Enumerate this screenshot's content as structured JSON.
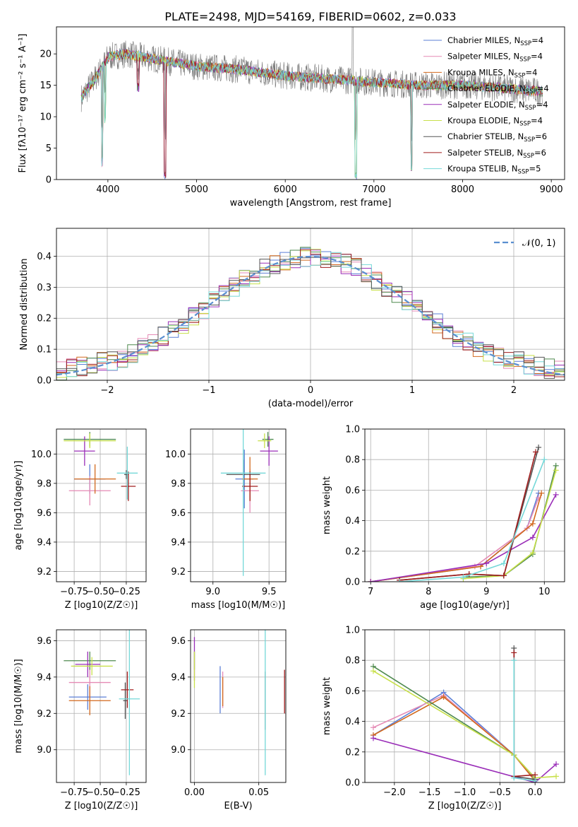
{
  "title": "PLATE=2498, MJD=54169, FIBERID=0602, z=0.033",
  "series": [
    {
      "name": "Chabrier MILES, N_SSP=4",
      "legend_main": "Chabrier MILES, N",
      "legend_sub": "SSP",
      "legend_tail": "=4",
      "color": "#5b7fd6"
    },
    {
      "name": "Salpeter MILES, N_SSP=4",
      "legend_main": "Salpeter MILES, N",
      "legend_sub": "SSP",
      "legend_tail": "=4",
      "color": "#e58ab5"
    },
    {
      "name": "Kroupa MILES, N_SSP=4",
      "legend_main": "Kroupa MILES, N",
      "legend_sub": "SSP",
      "legend_tail": "=4",
      "color": "#d2691e"
    },
    {
      "name": "Chabrier ELODIE, N_SSP=4",
      "legend_main": "Chabrier ELODIE, N",
      "legend_sub": "SSP",
      "legend_tail": "=4",
      "color": "#4f8a4f"
    },
    {
      "name": "Salpeter ELODIE, N_SSP=4",
      "legend_main": "Salpeter ELODIE, N",
      "legend_sub": "SSP",
      "legend_tail": "=4",
      "color": "#9a2eb8"
    },
    {
      "name": "Kroupa ELODIE, N_SSP=4",
      "legend_main": "Kroupa ELODIE, N",
      "legend_sub": "SSP",
      "legend_tail": "=4",
      "color": "#c8e04a"
    },
    {
      "name": "Chabrier STELIB, N_SSP=6",
      "legend_main": "Chabrier STELIB, N",
      "legend_sub": "SSP",
      "legend_tail": "=6",
      "color": "#555555"
    },
    {
      "name": "Salpeter STELIB, N_SSP=6",
      "legend_main": "Salpeter STELIB, N",
      "legend_sub": "SSP",
      "legend_tail": "=6",
      "color": "#a01c1c"
    },
    {
      "name": "Kroupa STELIB, N_SSP=5",
      "legend_main": "Kroupa STELIB, N",
      "legend_sub": "SSP",
      "legend_tail": "=5",
      "color": "#74d8d8"
    }
  ],
  "chart_data": [
    {
      "id": "spectrum",
      "type": "line",
      "xlabel": "wavelength [Angstrom, rest frame]",
      "ylabel": "Flux [fλ10⁻¹⁷ erg cm⁻² s⁻¹ A⁻¹]",
      "xlim": [
        3420,
        9150
      ],
      "ylim": [
        0,
        24.3
      ],
      "xticks": [
        4000,
        5000,
        6000,
        7000,
        8000,
        9000
      ],
      "yticks": [
        0,
        5,
        10,
        15,
        20
      ],
      "wavelength_range": [
        3700,
        8900
      ],
      "continuum_anchors": {
        "x": [
          3700,
          3800,
          3900,
          4000,
          4200,
          4400,
          4600,
          5000,
          5500,
          6000,
          6500,
          7000,
          7500,
          8000,
          8500,
          8900
        ],
        "y": [
          13,
          15,
          17,
          19.5,
          20,
          19.5,
          19,
          18,
          17.5,
          16.5,
          16,
          15.5,
          15,
          15,
          14.5,
          14
        ]
      },
      "absorption_lines": [
        {
          "x": 3935,
          "depth": 15
        },
        {
          "x": 4645,
          "depth": 18
        },
        {
          "x": 6795,
          "depth": 15
        },
        {
          "x": 7425,
          "depth": 13
        },
        {
          "x": 4340,
          "depth": 5
        },
        {
          "x": 3970,
          "depth": 9
        }
      ],
      "grid": false,
      "legend": "top-right"
    },
    {
      "id": "residuals",
      "type": "step",
      "xlabel": "(data-model)/error",
      "ylabel": "Normed distribution",
      "xlim": [
        -2.5,
        2.5
      ],
      "ylim": [
        0,
        0.49
      ],
      "xticks": [
        -2,
        -1,
        0,
        1,
        2
      ],
      "yticks": [
        0.0,
        0.1,
        0.2,
        0.3,
        0.4
      ],
      "bin_width": 0.1,
      "reference_curve": {
        "label": "N(0,1)",
        "mu": 0,
        "sigma": 1
      },
      "grid": true,
      "legend": "top-right"
    },
    {
      "id": "age-vs-Z",
      "type": "errorbar",
      "xlabel": "Z [log10(Z/Z☉)]",
      "ylabel": "age  [log10(age/yr)]",
      "xlim": [
        -0.92,
        -0.06
      ],
      "ylim": [
        9.13,
        10.17
      ],
      "xticks": [
        -0.75,
        -0.5,
        -0.25
      ],
      "yticks": [
        9.2,
        9.4,
        9.6,
        9.8,
        10.0
      ],
      "points": [
        {
          "series": 0,
          "x": -0.6,
          "xerr": 0.15,
          "y": 9.83,
          "yerr": 0.1
        },
        {
          "series": 1,
          "x": -0.6,
          "xerr": 0.2,
          "y": 9.75,
          "yerr": 0.1
        },
        {
          "series": 2,
          "x": -0.55,
          "xerr": 0.2,
          "y": 9.83,
          "yerr": 0.1
        },
        {
          "series": 3,
          "x": -0.6,
          "xerr": 0.25,
          "y": 10.1,
          "yerr": 0.05
        },
        {
          "series": 4,
          "x": -0.65,
          "xerr": 0.1,
          "y": 10.02,
          "yerr": 0.1
        },
        {
          "series": 5,
          "x": -0.6,
          "xerr": 0.25,
          "y": 10.09,
          "yerr": 0.05
        },
        {
          "series": 6,
          "x": -0.25,
          "xerr": 0.02,
          "y": 9.86,
          "yerr": 0.03
        },
        {
          "series": 7,
          "x": -0.23,
          "xerr": 0.07,
          "y": 9.78,
          "yerr": 0.1
        },
        {
          "series": 8,
          "x": -0.24,
          "xerr": 0.1,
          "y": 9.87,
          "yerr": 0.18
        }
      ],
      "grid": true
    },
    {
      "id": "age-vs-mass",
      "type": "errorbar",
      "xlabel": "mass [log10(M/M☉)]",
      "ylabel": "",
      "xlim": [
        8.8,
        9.65
      ],
      "ylim": [
        9.13,
        10.17
      ],
      "xticks": [
        9.0,
        9.5
      ],
      "yticks": [
        9.2,
        9.4,
        9.6,
        9.8,
        10.0
      ],
      "points": [
        {
          "series": 0,
          "x": 9.28,
          "xerr": 0.08,
          "y": 9.83,
          "yerr": 0.2
        },
        {
          "series": 1,
          "x": 9.33,
          "xerr": 0.08,
          "y": 9.75,
          "yerr": 0.15
        },
        {
          "series": 2,
          "x": 9.33,
          "xerr": 0.07,
          "y": 9.83,
          "yerr": 0.15
        },
        {
          "series": 3,
          "x": 9.49,
          "xerr": 0.05,
          "y": 10.1,
          "yerr": 0.05
        },
        {
          "series": 4,
          "x": 9.5,
          "xerr": 0.08,
          "y": 10.02,
          "yerr": 0.1
        },
        {
          "series": 5,
          "x": 9.46,
          "xerr": 0.06,
          "y": 10.09,
          "yerr": 0.05
        },
        {
          "series": 6,
          "x": 9.27,
          "xerr": 0.15,
          "y": 9.86,
          "yerr": 0.1
        },
        {
          "series": 7,
          "x": 9.33,
          "xerr": 0.07,
          "y": 9.78,
          "yerr": 0.1
        },
        {
          "series": 8,
          "x": 9.27,
          "xerr": 0.2,
          "y": 9.87,
          "yerr": 0.7
        }
      ],
      "grid": true
    },
    {
      "id": "massweight-vs-age",
      "type": "line",
      "xlabel": "age  [log10(age/yr)]",
      "ylabel": "mass weight",
      "xlim": [
        6.9,
        10.35
      ],
      "ylim": [
        0,
        1.0
      ],
      "xticks": [
        7,
        8,
        9,
        10
      ],
      "yticks": [
        0.0,
        0.2,
        0.4,
        0.6,
        0.8,
        1.0
      ],
      "lines": [
        {
          "series": 0,
          "x": [
            7.0,
            8.9,
            9.7,
            9.9
          ],
          "y": [
            0.0,
            0.1,
            0.35,
            0.58
          ]
        },
        {
          "series": 1,
          "x": [
            7.0,
            8.8,
            9.7,
            9.9
          ],
          "y": [
            0.0,
            0.1,
            0.35,
            0.55
          ]
        },
        {
          "series": 2,
          "x": [
            7.0,
            8.9,
            9.8,
            9.95
          ],
          "y": [
            0.0,
            0.1,
            0.38,
            0.58
          ]
        },
        {
          "series": 3,
          "x": [
            8.6,
            9.3,
            9.8,
            10.2
          ],
          "y": [
            0.03,
            0.04,
            0.18,
            0.76
          ]
        },
        {
          "series": 4,
          "x": [
            7.0,
            9.0,
            9.8,
            10.2
          ],
          "y": [
            0.0,
            0.12,
            0.29,
            0.57
          ]
        },
        {
          "series": 5,
          "x": [
            8.6,
            9.3,
            9.8,
            10.2
          ],
          "y": [
            0.02,
            0.04,
            0.19,
            0.73
          ]
        },
        {
          "series": 6,
          "x": [
            7.5,
            8.7,
            9.3,
            9.9
          ],
          "y": [
            0.01,
            0.05,
            0.04,
            0.88
          ]
        },
        {
          "series": 7,
          "x": [
            7.5,
            8.7,
            9.3,
            9.85
          ],
          "y": [
            0.01,
            0.05,
            0.04,
            0.85
          ]
        },
        {
          "series": 8,
          "x": [
            7.5,
            8.6,
            9.3,
            10.0
          ],
          "y": [
            0.0,
            0.03,
            0.12,
            0.8
          ]
        }
      ],
      "grid": true
    },
    {
      "id": "mass-vs-Z",
      "type": "errorbar",
      "xlabel": "Z [log10(Z/Z☉)]",
      "ylabel": "mass [log10(M/M☉)]",
      "xlim": [
        -0.92,
        -0.06
      ],
      "ylim": [
        8.82,
        9.66
      ],
      "xticks": [
        -0.75,
        -0.5,
        -0.25
      ],
      "yticks": [
        9.0,
        9.2,
        9.4,
        9.6
      ],
      "points": [
        {
          "series": 0,
          "x": -0.62,
          "xerr": 0.18,
          "y": 9.29,
          "yerr": 0.07
        },
        {
          "series": 1,
          "x": -0.6,
          "xerr": 0.2,
          "y": 9.37,
          "yerr": 0.08
        },
        {
          "series": 2,
          "x": -0.6,
          "xerr": 0.2,
          "y": 9.27,
          "yerr": 0.08
        },
        {
          "series": 3,
          "x": -0.6,
          "xerr": 0.25,
          "y": 9.49,
          "yerr": 0.05
        },
        {
          "series": 4,
          "x": -0.62,
          "xerr": 0.12,
          "y": 9.47,
          "yerr": 0.07
        },
        {
          "series": 5,
          "x": -0.58,
          "xerr": 0.2,
          "y": 9.46,
          "yerr": 0.05
        },
        {
          "series": 6,
          "x": -0.26,
          "xerr": 0.02,
          "y": 9.27,
          "yerr": 0.1
        },
        {
          "series": 7,
          "x": -0.24,
          "xerr": 0.06,
          "y": 9.33,
          "yerr": 0.1
        },
        {
          "series": 8,
          "x": -0.22,
          "xerr": 0.1,
          "y": 9.28,
          "yerr": 0.42
        }
      ],
      "grid": true
    },
    {
      "id": "mass-vs-EBV",
      "type": "errorbar",
      "xlabel": "E(B-V)",
      "ylabel": "",
      "xlim": [
        -0.003,
        0.071
      ],
      "ylim": [
        8.82,
        9.66
      ],
      "xticks": [
        0.0,
        0.05
      ],
      "yticks": [
        9.0,
        9.2,
        9.4,
        9.6
      ],
      "points": [
        {
          "series": 0,
          "x": 0.02,
          "xerr": 0,
          "y": 9.33,
          "yerr": 0.13
        },
        {
          "series": 1,
          "x": 0.022,
          "xerr": 0,
          "y": 9.33,
          "yerr": 0.1
        },
        {
          "series": 2,
          "x": 0.022,
          "xerr": 0,
          "y": 9.32,
          "yerr": 0.08
        },
        {
          "series": 3,
          "x": 0.0,
          "xerr": 0,
          "y": 9.49,
          "yerr": 0.05
        },
        {
          "series": 4,
          "x": 0.0,
          "xerr": 0,
          "y": 9.5,
          "yerr": 0.12
        },
        {
          "series": 5,
          "x": 0.0,
          "xerr": 0,
          "y": 9.44,
          "yerr": 0.1
        },
        {
          "series": 6,
          "x": 0.055,
          "xerr": 0,
          "y": 9.27,
          "yerr": 0.16
        },
        {
          "series": 7,
          "x": 0.07,
          "xerr": 0,
          "y": 9.32,
          "yerr": 0.12
        },
        {
          "series": 8,
          "x": 0.055,
          "xerr": 0,
          "y": 9.28,
          "yerr": 0.42
        }
      ],
      "grid": true
    },
    {
      "id": "massweight-vs-Z",
      "type": "line",
      "xlabel": "Z [log10(Z/Z☉)]",
      "ylabel": "mass weight",
      "xlim": [
        -2.42,
        0.42
      ],
      "ylim": [
        0,
        1.0
      ],
      "xticks": [
        -2.0,
        -1.5,
        -1.0,
        -0.5,
        0.0
      ],
      "yticks": [
        0.0,
        0.2,
        0.4,
        0.6,
        0.8,
        1.0
      ],
      "lines": [
        {
          "series": 0,
          "x": [
            -2.3,
            -1.3,
            -0.3,
            0.0
          ],
          "y": [
            0.31,
            0.59,
            0.18,
            0.02
          ]
        },
        {
          "series": 1,
          "x": [
            -2.3,
            -1.3,
            -0.3,
            0.0
          ],
          "y": [
            0.36,
            0.57,
            0.18,
            0.01
          ]
        },
        {
          "series": 2,
          "x": [
            -2.3,
            -1.3,
            -0.3,
            0.0
          ],
          "y": [
            0.31,
            0.56,
            0.18,
            0.01
          ]
        },
        {
          "series": 3,
          "x": [
            -2.3,
            -0.3,
            0.0
          ],
          "y": [
            0.76,
            0.18,
            0.03
          ]
        },
        {
          "series": 4,
          "x": [
            -2.3,
            0.0,
            0.3
          ],
          "y": [
            0.29,
            0.0,
            0.12
          ]
        },
        {
          "series": 5,
          "x": [
            -2.3,
            -0.3,
            0.0,
            0.3
          ],
          "y": [
            0.73,
            0.18,
            0.03,
            0.04
          ]
        },
        {
          "series": 6,
          "x": [
            -0.3,
            -0.3,
            0.0
          ],
          "y": [
            0.88,
            0.04,
            0.02
          ]
        },
        {
          "series": 7,
          "x": [
            -0.3,
            -0.3,
            0.0
          ],
          "y": [
            0.85,
            0.04,
            0.05
          ]
        },
        {
          "series": 8,
          "x": [
            -0.3,
            -0.3,
            0.0
          ],
          "y": [
            0.8,
            0.03,
            0.01
          ]
        }
      ],
      "grid": true
    }
  ],
  "residual_bins": {
    "x0": -2.5,
    "count": 50
  }
}
